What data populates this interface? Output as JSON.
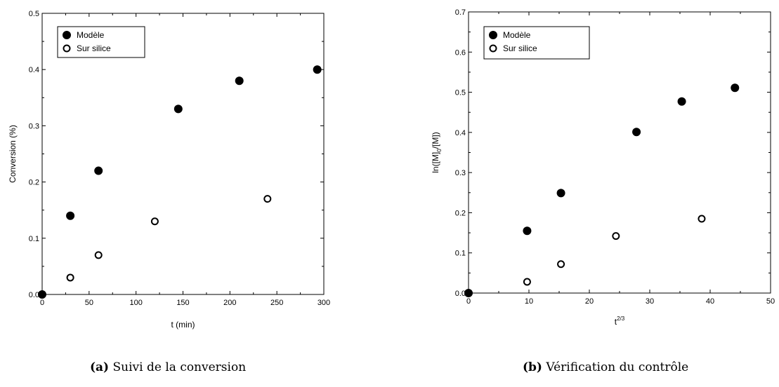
{
  "chart_data": [
    {
      "type": "scatter",
      "xlabel": "t (min)",
      "ylabel": "Conversion (%)",
      "xlim": [
        0,
        300
      ],
      "ylim": [
        0,
        0.5
      ],
      "xticks": [
        0,
        50,
        100,
        150,
        200,
        250,
        300
      ],
      "yticks": [
        0.0,
        0.1,
        0.2,
        0.3,
        0.4,
        0.5
      ],
      "xtick_labels": [
        "0",
        "50",
        "100",
        "150",
        "200",
        "250",
        "300"
      ],
      "ytick_labels": [
        "0.0",
        "0.1",
        "0.2",
        "0.3",
        "0.4",
        "0.5"
      ],
      "legend_position": "top-left",
      "series": [
        {
          "name": "Modèle",
          "marker": "filled-circle",
          "x": [
            0,
            30,
            60,
            145,
            210,
            293
          ],
          "y": [
            0,
            0.14,
            0.22,
            0.33,
            0.38,
            0.4
          ]
        },
        {
          "name": "Sur silice",
          "marker": "open-circle",
          "x": [
            30,
            60,
            120,
            240
          ],
          "y": [
            0.03,
            0.07,
            0.13,
            0.17
          ]
        }
      ],
      "caption_tag": "(a)",
      "caption_text": "Suivi de la conversion"
    },
    {
      "type": "scatter",
      "xlabel": "t",
      "xlabel_sup": "2/3",
      "ylabel": "ln([M]0/[M])",
      "ylabel_parts": [
        "ln([M]",
        "0",
        "/[M])"
      ],
      "xlim": [
        0,
        50
      ],
      "ylim": [
        0,
        0.7
      ],
      "xticks": [
        0,
        10,
        20,
        30,
        40,
        50
      ],
      "yticks": [
        0.0,
        0.1,
        0.2,
        0.3,
        0.4,
        0.5,
        0.6,
        0.7
      ],
      "xtick_labels": [
        "0",
        "10",
        "20",
        "30",
        "40",
        "50"
      ],
      "ytick_labels": [
        "0.0",
        "0.1",
        "0.2",
        "0.3",
        "0.4",
        "0.5",
        "0.6",
        "0.7"
      ],
      "legend_position": "top-left",
      "series": [
        {
          "name": "Modèle",
          "marker": "filled-circle",
          "x": [
            0,
            9.7,
            15.3,
            27.8,
            35.3,
            44.1
          ],
          "y": [
            0,
            0.155,
            0.249,
            0.401,
            0.477,
            0.511
          ]
        },
        {
          "name": "Sur silice",
          "marker": "open-circle",
          "x": [
            9.7,
            15.3,
            24.4,
            38.6
          ],
          "y": [
            0.028,
            0.072,
            0.142,
            0.185
          ]
        }
      ],
      "caption_tag": "(b)",
      "caption_text": "Vérification du contrôle"
    }
  ]
}
